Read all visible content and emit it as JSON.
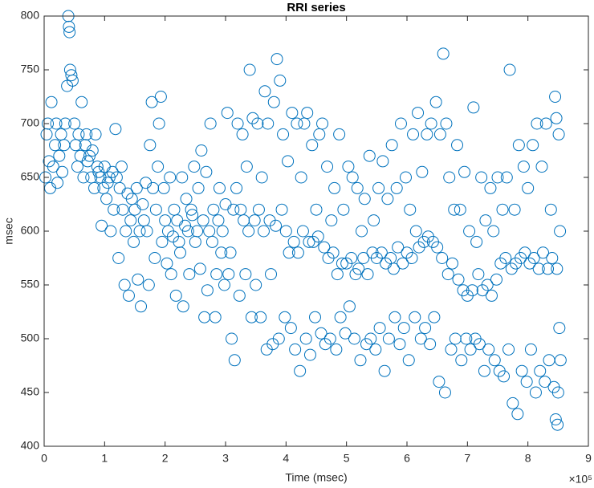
{
  "chart_data": {
    "type": "scatter",
    "title": "RRI series",
    "x_label": "Time (msec)",
    "y_label": "msec",
    "x_multiplier": "×10⁵",
    "color": "#0072BD",
    "xlim": [
      0,
      900000
    ],
    "xticks": [
      0,
      {
        "value": 100000,
        "label": "1"
      },
      {
        "value": 200000,
        "label": "2"
      },
      {
        "value": 300000,
        "label": "3"
      },
      {
        "value": 400000,
        "label": "4"
      },
      {
        "value": 500000,
        "label": "5"
      },
      {
        "value": 600000,
        "label": "6"
      },
      {
        "value": 700000,
        "label": "7"
      },
      {
        "value": 800000,
        "label": "8"
      },
      {
        "value": 900000,
        "label": "9"
      }
    ],
    "ylim": [
      400,
      800
    ],
    "yticks": [
      400,
      450,
      500,
      550,
      600,
      650,
      700,
      750,
      800
    ],
    "x": [
      2000,
      4000,
      6000,
      8000,
      10000,
      12000,
      15000,
      18000,
      20000,
      22000,
      25000,
      28000,
      30000,
      33000,
      35000,
      38000,
      40000,
      41000,
      42000,
      43000,
      45000,
      47000,
      50000,
      52000,
      55000,
      57000,
      60000,
      62000,
      65000,
      68000,
      70000,
      72000,
      75000,
      78000,
      80000,
      83000,
      85000,
      88000,
      90000,
      93000,
      95000,
      98000,
      100000,
      103000,
      105000,
      108000,
      110000,
      113000,
      115000,
      118000,
      120000,
      123000,
      125000,
      128000,
      130000,
      133000,
      135000,
      138000,
      140000,
      143000,
      145000,
      148000,
      150000,
      153000,
      155000,
      158000,
      160000,
      163000,
      165000,
      168000,
      170000,
      173000,
      175000,
      178000,
      180000,
      183000,
      185000,
      188000,
      190000,
      193000,
      195000,
      198000,
      200000,
      203000,
      205000,
      208000,
      210000,
      213000,
      215000,
      218000,
      220000,
      223000,
      225000,
      228000,
      230000,
      233000,
      235000,
      238000,
      240000,
      243000,
      245000,
      248000,
      250000,
      253000,
      255000,
      258000,
      260000,
      263000,
      265000,
      268000,
      270000,
      273000,
      275000,
      278000,
      280000,
      283000,
      285000,
      288000,
      290000,
      293000,
      295000,
      298000,
      300000,
      303000,
      305000,
      308000,
      310000,
      313000,
      315000,
      318000,
      320000,
      323000,
      325000,
      328000,
      330000,
      333000,
      335000,
      338000,
      340000,
      343000,
      345000,
      348000,
      350000,
      353000,
      355000,
      358000,
      360000,
      363000,
      365000,
      368000,
      370000,
      373000,
      375000,
      378000,
      380000,
      383000,
      385000,
      388000,
      390000,
      393000,
      395000,
      398000,
      400000,
      403000,
      405000,
      408000,
      410000,
      413000,
      415000,
      418000,
      420000,
      423000,
      425000,
      428000,
      430000,
      433000,
      435000,
      438000,
      440000,
      443000,
      445000,
      448000,
      450000,
      453000,
      455000,
      458000,
      460000,
      463000,
      465000,
      468000,
      470000,
      473000,
      475000,
      478000,
      480000,
      483000,
      485000,
      488000,
      490000,
      493000,
      495000,
      498000,
      500000,
      503000,
      505000,
      508000,
      510000,
      513000,
      515000,
      518000,
      520000,
      523000,
      525000,
      528000,
      530000,
      533000,
      535000,
      538000,
      540000,
      543000,
      545000,
      548000,
      550000,
      553000,
      555000,
      558000,
      560000,
      563000,
      565000,
      568000,
      570000,
      573000,
      575000,
      578000,
      580000,
      583000,
      585000,
      588000,
      590000,
      593000,
      595000,
      598000,
      600000,
      603000,
      605000,
      608000,
      610000,
      613000,
      615000,
      618000,
      620000,
      623000,
      625000,
      628000,
      630000,
      633000,
      635000,
      638000,
      640000,
      643000,
      645000,
      648000,
      650000,
      653000,
      655000,
      658000,
      660000,
      663000,
      665000,
      668000,
      670000,
      673000,
      675000,
      678000,
      680000,
      683000,
      685000,
      688000,
      690000,
      693000,
      695000,
      698000,
      700000,
      703000,
      705000,
      708000,
      710000,
      713000,
      715000,
      718000,
      720000,
      723000,
      725000,
      728000,
      730000,
      733000,
      735000,
      738000,
      740000,
      743000,
      745000,
      748000,
      750000,
      753000,
      755000,
      758000,
      760000,
      763000,
      765000,
      768000,
      770000,
      773000,
      775000,
      778000,
      780000,
      783000,
      785000,
      788000,
      790000,
      793000,
      795000,
      798000,
      800000,
      803000,
      805000,
      808000,
      810000,
      813000,
      815000,
      818000,
      820000,
      823000,
      825000,
      828000,
      830000,
      833000,
      835000,
      838000,
      840000,
      843000,
      845000,
      846000,
      847000,
      848000,
      849000,
      850000,
      851000,
      852000,
      853000,
      854000
    ],
    "values": [
      650,
      690,
      700,
      665,
      640,
      720,
      660,
      680,
      700,
      645,
      670,
      690,
      655,
      680,
      700,
      735,
      800,
      790,
      785,
      750,
      745,
      740,
      700,
      680,
      660,
      690,
      670,
      720,
      650,
      680,
      690,
      665,
      670,
      650,
      675,
      640,
      690,
      660,
      655,
      650,
      605,
      640,
      660,
      630,
      645,
      650,
      600,
      655,
      620,
      695,
      650,
      575,
      640,
      660,
      620,
      550,
      600,
      635,
      540,
      610,
      630,
      590,
      620,
      640,
      555,
      600,
      530,
      625,
      610,
      645,
      600,
      550,
      680,
      720,
      640,
      575,
      620,
      660,
      700,
      725,
      590,
      640,
      610,
      570,
      600,
      650,
      560,
      595,
      620,
      540,
      610,
      590,
      580,
      650,
      530,
      605,
      630,
      600,
      560,
      620,
      615,
      660,
      590,
      600,
      640,
      565,
      675,
      610,
      520,
      655,
      545,
      600,
      700,
      590,
      620,
      520,
      560,
      610,
      640,
      580,
      600,
      550,
      625,
      710,
      560,
      580,
      500,
      620,
      480,
      640,
      700,
      540,
      620,
      690,
      610,
      560,
      660,
      600,
      750,
      520,
      705,
      610,
      550,
      700,
      620,
      520,
      650,
      600,
      730,
      490,
      700,
      610,
      560,
      495,
      720,
      605,
      760,
      500,
      740,
      620,
      690,
      520,
      600,
      665,
      580,
      510,
      710,
      590,
      490,
      700,
      580,
      470,
      650,
      600,
      700,
      500,
      710,
      590,
      485,
      680,
      590,
      520,
      620,
      595,
      690,
      505,
      700,
      585,
      495,
      660,
      575,
      500,
      610,
      580,
      640,
      490,
      560,
      690,
      520,
      570,
      620,
      505,
      570,
      660,
      530,
      575,
      650,
      500,
      560,
      640,
      565,
      480,
      600,
      575,
      630,
      495,
      560,
      670,
      500,
      580,
      610,
      490,
      575,
      640,
      510,
      580,
      665,
      470,
      570,
      630,
      500,
      575,
      680,
      565,
      520,
      640,
      585,
      495,
      700,
      570,
      510,
      650,
      580,
      480,
      620,
      575,
      690,
      520,
      600,
      710,
      585,
      500,
      655,
      590,
      510,
      690,
      595,
      495,
      700,
      590,
      520,
      720,
      585,
      460,
      690,
      575,
      765,
      450,
      700,
      560,
      650,
      490,
      570,
      620,
      500,
      680,
      555,
      620,
      480,
      545,
      655,
      500,
      540,
      600,
      490,
      545,
      715,
      500,
      590,
      560,
      495,
      650,
      545,
      470,
      610,
      550,
      490,
      640,
      540,
      600,
      480,
      555,
      650,
      470,
      570,
      620,
      465,
      575,
      650,
      490,
      750,
      565,
      440,
      620,
      570,
      430,
      680,
      575,
      470,
      660,
      580,
      460,
      640,
      570,
      490,
      680,
      575,
      450,
      700,
      565,
      470,
      660,
      580,
      460,
      700,
      565,
      480,
      620,
      575,
      455,
      725,
      425,
      705,
      565,
      420,
      450,
      690,
      510,
      600,
      480
    ]
  }
}
